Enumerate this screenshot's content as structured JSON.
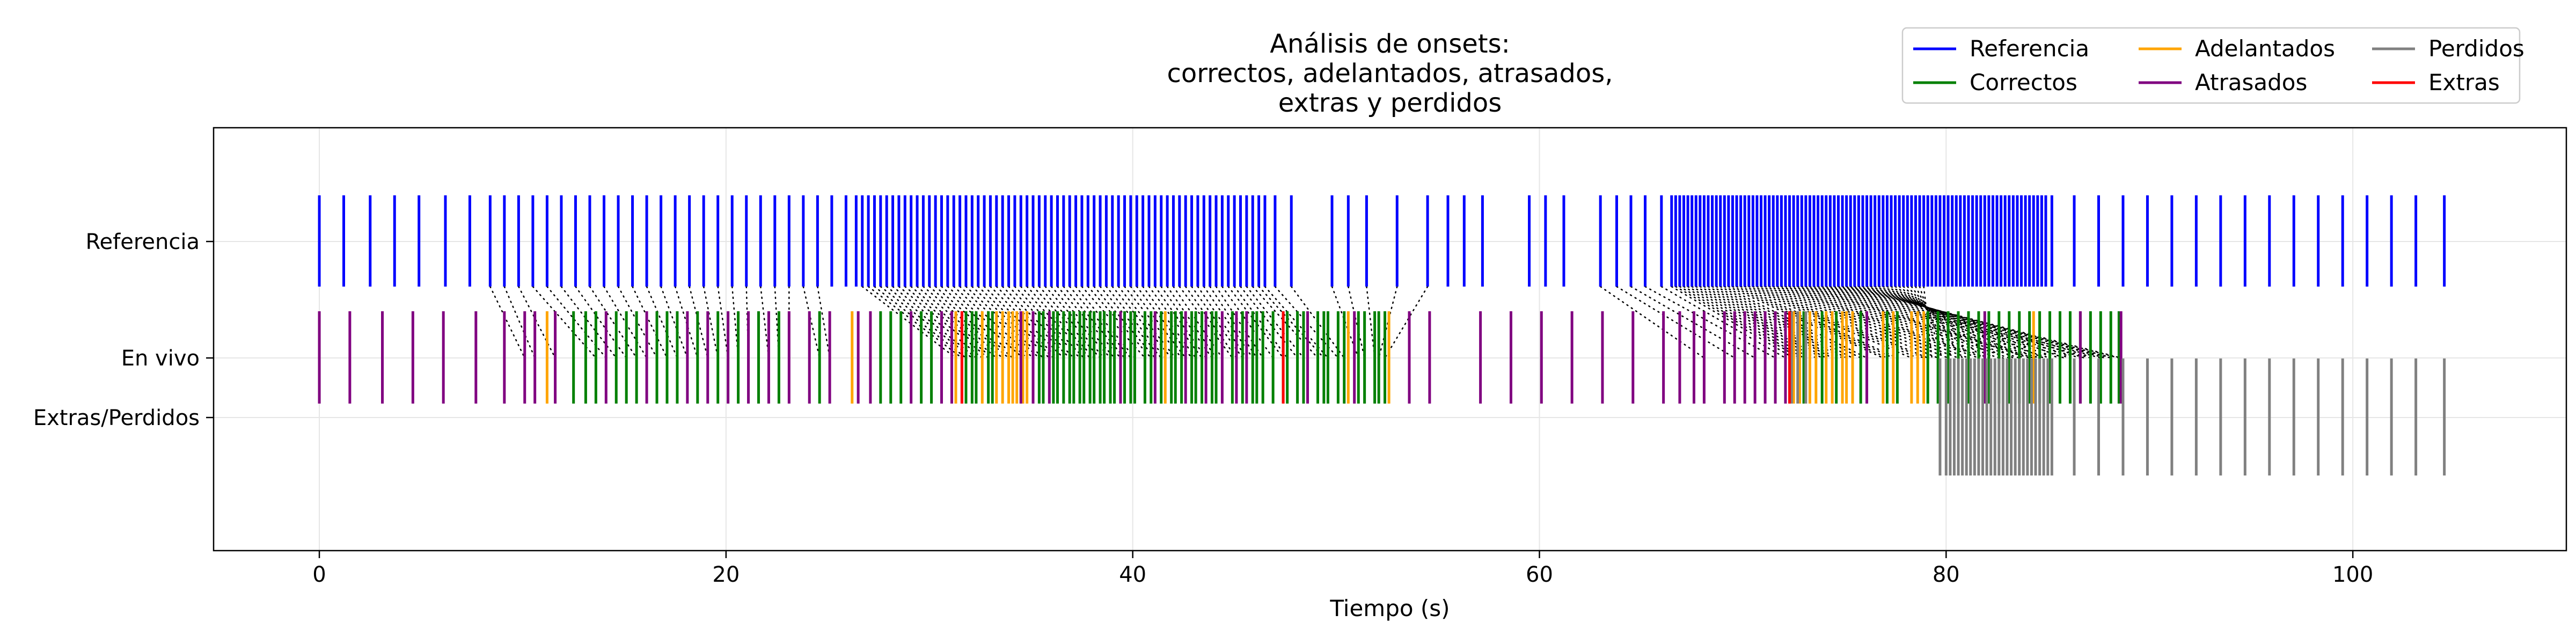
{
  "chart_data": {
    "type": "eventplot",
    "title": [
      "Análisis de onsets:",
      "correctos, adelantados, atrasados,",
      "extras y perdidos"
    ],
    "xlabel": "Tiempo (s)",
    "ylabel": "",
    "xlim": [
      -5.2,
      110.5
    ],
    "xticks": [
      0,
      20,
      40,
      60,
      80,
      100
    ],
    "rows": [
      "Referencia",
      "En vivo",
      "Extras/Perdidos"
    ],
    "grid": true,
    "legend_position": "top-right",
    "legend": [
      {
        "name": "Referencia",
        "color": "#0000ff"
      },
      {
        "name": "Correctos",
        "color": "#008000"
      },
      {
        "name": "Adelantados",
        "color": "#ffa500"
      },
      {
        "name": "Atrasados",
        "color": "#800080"
      },
      {
        "name": "Perdidos",
        "color": "#808080"
      },
      {
        "name": "Extras",
        "color": "#ff0000"
      }
    ],
    "colors": {
      "Referencia": "#0000ff",
      "Correctos": "#008000",
      "Adelantados": "#ffa500",
      "Atrasados": "#800080",
      "Perdidos": "#808080",
      "Extras": "#ff0000"
    },
    "series": [
      {
        "name": "Referencia",
        "row": "Referencia",
        "values": [
          0.0,
          1.2,
          2.5,
          3.7,
          4.9,
          6.2,
          7.4,
          8.4,
          9.1,
          9.8,
          10.5,
          11.2,
          11.9,
          12.6,
          13.3,
          14.0,
          14.7,
          15.4,
          16.1,
          16.8,
          17.5,
          18.2,
          18.9,
          19.6,
          20.3,
          21.0,
          21.7,
          22.4,
          23.1,
          23.8,
          24.5,
          25.2,
          25.9,
          26.4,
          26.7,
          27.0,
          27.3,
          27.6,
          27.9,
          28.2,
          28.5,
          28.8,
          29.1,
          29.4,
          29.7,
          30.0,
          30.3,
          30.6,
          30.9,
          31.2,
          31.5,
          31.8,
          32.1,
          32.4,
          32.7,
          33.0,
          33.3,
          33.6,
          33.9,
          34.2,
          34.5,
          34.8,
          35.1,
          35.4,
          35.7,
          36.0,
          36.3,
          36.6,
          36.9,
          37.2,
          37.5,
          37.8,
          38.1,
          38.4,
          38.7,
          39.0,
          39.3,
          39.6,
          39.9,
          40.2,
          40.5,
          40.8,
          41.1,
          41.4,
          41.7,
          42.0,
          42.3,
          42.6,
          42.9,
          43.2,
          43.5,
          43.8,
          44.1,
          44.4,
          44.7,
          45.0,
          45.3,
          45.6,
          45.9,
          46.2,
          46.5,
          47.0,
          47.8,
          49.8,
          50.6,
          51.5,
          53.0,
          54.5,
          55.5,
          56.3,
          57.2,
          59.5,
          60.3,
          61.2,
          63.0,
          63.8,
          64.5,
          65.2,
          66.0,
          66.5,
          66.7,
          66.9,
          67.1,
          67.3,
          67.5,
          67.7,
          67.9,
          68.1,
          68.3,
          68.5,
          68.7,
          68.9,
          69.1,
          69.3,
          69.5,
          69.7,
          69.9,
          70.1,
          70.3,
          70.5,
          70.7,
          70.9,
          71.1,
          71.3,
          71.5,
          71.7,
          71.9,
          72.1,
          72.3,
          72.5,
          72.7,
          72.9,
          73.1,
          73.3,
          73.5,
          73.7,
          73.9,
          74.1,
          74.3,
          74.5,
          74.7,
          74.9,
          75.1,
          75.3,
          75.5,
          75.7,
          75.9,
          76.1,
          76.3,
          76.5,
          76.7,
          76.9,
          77.1,
          77.3,
          77.5,
          77.7,
          77.9,
          78.1,
          78.3,
          78.5,
          78.7,
          78.9,
          79.1,
          79.3,
          79.5,
          79.7,
          79.9,
          80.1,
          80.3,
          80.5,
          80.7,
          80.9,
          81.1,
          81.3,
          81.5,
          81.7,
          81.9,
          82.1,
          82.3,
          82.5,
          82.7,
          82.9,
          83.1,
          83.3,
          83.5,
          83.7,
          83.9,
          84.1,
          84.3,
          84.5,
          84.7,
          84.9,
          85.2,
          86.3,
          87.5,
          88.7,
          89.9,
          91.1,
          92.3,
          93.5,
          94.7,
          95.9,
          97.1,
          98.3,
          99.5,
          100.7,
          101.9,
          103.1,
          104.5
        ]
      },
      {
        "name": "Correctos",
        "row": "En vivo",
        "values": [
          0.0,
          12.5,
          13.1,
          13.6,
          14.6,
          15.1,
          15.6,
          16.6,
          17.1,
          17.6,
          18.6,
          19.6,
          20.6,
          21.6,
          22.6,
          24.6,
          27.6,
          28.1,
          28.6,
          29.6,
          30.1,
          31.8,
          32.1,
          32.3,
          32.9,
          33.1,
          35.4,
          35.6,
          36.1,
          36.3,
          36.6,
          36.9,
          37.1,
          37.4,
          37.6,
          37.9,
          38.1,
          38.4,
          38.6,
          38.9,
          39.1,
          39.6,
          39.9,
          40.1,
          40.6,
          40.9,
          41.4,
          41.9,
          42.1,
          42.4,
          42.9,
          43.1,
          43.4,
          43.9,
          44.1,
          44.9,
          45.4,
          45.9,
          46.1,
          46.4,
          46.9,
          47.4,
          47.6,
          48.1,
          48.4,
          49.1,
          49.4,
          49.6,
          50.1,
          50.4,
          51.1,
          51.4,
          51.9,
          52.1,
          52.4,
          73.0,
          73.9,
          74.6,
          75.8,
          77.1,
          77.6,
          79.1,
          79.6,
          80.1,
          80.6,
          81.1,
          81.6,
          82.1,
          82.6,
          83.1,
          83.6,
          84.1,
          84.6,
          85.1,
          85.6,
          86.1,
          86.6,
          87.1,
          87.6,
          88.1,
          88.5
        ]
      },
      {
        "name": "Adelantados",
        "row": "En vivo",
        "values": [
          11.2,
          26.2,
          31.3,
          32.6,
          33.3,
          33.6,
          33.9,
          34.1,
          34.3,
          34.6,
          34.8,
          41.6,
          50.6,
          52.6,
          72.5,
          72.8,
          73.3,
          73.6,
          74.1,
          74.4,
          74.9,
          75.1,
          75.4,
          76.9,
          77.4,
          78.3,
          78.6,
          78.9,
          84.3
        ]
      },
      {
        "name": "Atrasados",
        "row": "En vivo",
        "values": [
          0.0,
          1.5,
          3.1,
          4.6,
          6.1,
          7.7,
          9.1,
          10.1,
          10.6,
          11.6,
          14.1,
          16.1,
          18.1,
          19.1,
          20.1,
          21.1,
          22.1,
          23.1,
          24.1,
          25.1,
          26.5,
          27.1,
          29.1,
          30.6,
          31.1,
          31.6,
          34.5,
          35.1,
          35.9,
          39.4,
          41.1,
          42.6,
          43.6,
          44.4,
          45.1,
          45.6,
          48.6,
          50.9,
          53.6,
          54.6,
          57.1,
          58.6,
          60.1,
          61.6,
          63.1,
          64.6,
          66.1,
          66.9,
          67.6,
          68.1,
          69.1,
          69.6,
          70.1,
          70.6,
          71.1,
          71.6,
          72.1,
          76.1,
          81.9,
          86.6,
          88.6
        ]
      },
      {
        "name": "Perdidos",
        "row": "En vivo",
        "values": [
          72.4,
          72.7,
          73.1
        ]
      },
      {
        "name": "Extras",
        "row": "En vivo",
        "values": [
          31.6,
          47.4,
          72.3
        ]
      },
      {
        "name": "Perdidos",
        "row": "Extras/Perdidos",
        "values": [
          79.7,
          80.0,
          80.2,
          80.4,
          80.6,
          80.8,
          81.0,
          81.2,
          81.4,
          81.6,
          81.8,
          82.0,
          82.2,
          82.4,
          82.6,
          82.8,
          83.0,
          83.2,
          83.4,
          83.6,
          83.8,
          84.0,
          84.2,
          84.4,
          84.6,
          84.8,
          85.0,
          85.2,
          86.3,
          87.5,
          88.7,
          89.9,
          91.1,
          92.3,
          93.5,
          94.7,
          95.9,
          97.1,
          98.3,
          99.5,
          100.7,
          101.9,
          103.1,
          104.5
        ]
      }
    ],
    "links": [
      [
        10.5,
        13.6
      ],
      [
        11.2,
        14.1
      ],
      [
        11.9,
        14.6
      ],
      [
        12.6,
        15.1
      ],
      [
        13.3,
        15.6
      ],
      [
        14.0,
        16.1
      ],
      [
        14.7,
        16.6
      ],
      [
        15.4,
        17.1
      ],
      [
        16.1,
        17.6
      ],
      [
        16.8,
        18.1
      ],
      [
        17.5,
        18.6
      ],
      [
        18.2,
        19.1
      ],
      [
        18.9,
        19.6
      ],
      [
        19.6,
        20.1
      ],
      [
        20.3,
        20.6
      ],
      [
        21.0,
        21.1
      ],
      [
        21.7,
        22.1
      ],
      [
        22.4,
        22.6
      ],
      [
        23.1,
        23.1
      ],
      [
        23.8,
        24.6
      ],
      [
        24.5,
        25.1
      ],
      [
        9.8,
        11.6
      ],
      [
        9.1,
        10.6
      ],
      [
        8.4,
        10.1
      ],
      [
        26.7,
        31.3
      ],
      [
        27.0,
        31.6
      ],
      [
        27.3,
        31.8
      ],
      [
        27.6,
        32.1
      ],
      [
        27.9,
        32.3
      ],
      [
        28.2,
        32.6
      ],
      [
        28.5,
        32.9
      ],
      [
        28.8,
        33.1
      ],
      [
        29.1,
        33.3
      ],
      [
        29.4,
        33.6
      ],
      [
        29.7,
        33.9
      ],
      [
        30.0,
        34.1
      ],
      [
        30.3,
        34.3
      ],
      [
        30.6,
        34.6
      ],
      [
        30.9,
        34.8
      ],
      [
        31.2,
        35.1
      ],
      [
        31.5,
        35.4
      ],
      [
        31.8,
        35.6
      ],
      [
        32.1,
        35.9
      ],
      [
        32.4,
        36.1
      ],
      [
        32.7,
        36.3
      ],
      [
        33.0,
        36.6
      ],
      [
        33.3,
        36.9
      ],
      [
        33.6,
        37.1
      ],
      [
        33.9,
        37.4
      ],
      [
        34.2,
        37.6
      ],
      [
        34.5,
        37.9
      ],
      [
        34.8,
        38.1
      ],
      [
        35.1,
        38.4
      ],
      [
        35.4,
        38.6
      ],
      [
        35.7,
        38.9
      ],
      [
        36.0,
        39.1
      ],
      [
        36.3,
        39.4
      ],
      [
        36.6,
        39.6
      ],
      [
        36.9,
        39.9
      ],
      [
        37.2,
        40.1
      ],
      [
        37.5,
        40.6
      ],
      [
        37.8,
        40.9
      ],
      [
        38.1,
        41.1
      ],
      [
        38.4,
        41.4
      ],
      [
        38.7,
        41.6
      ],
      [
        39.0,
        41.9
      ],
      [
        39.3,
        42.1
      ],
      [
        39.6,
        42.4
      ],
      [
        39.9,
        42.6
      ],
      [
        40.2,
        42.9
      ],
      [
        40.5,
        43.1
      ],
      [
        40.8,
        43.4
      ],
      [
        41.1,
        43.6
      ],
      [
        41.4,
        43.9
      ],
      [
        41.7,
        44.1
      ],
      [
        42.0,
        44.4
      ],
      [
        42.3,
        44.9
      ],
      [
        42.6,
        45.1
      ],
      [
        42.9,
        45.4
      ],
      [
        43.2,
        45.6
      ],
      [
        43.5,
        45.9
      ],
      [
        43.8,
        46.1
      ],
      [
        44.1,
        46.4
      ],
      [
        44.4,
        46.9
      ],
      [
        44.7,
        47.4
      ],
      [
        45.0,
        47.6
      ],
      [
        45.3,
        48.1
      ],
      [
        45.6,
        48.4
      ],
      [
        45.9,
        49.1
      ],
      [
        46.2,
        49.4
      ],
      [
        46.5,
        49.6
      ],
      [
        47.0,
        50.1
      ],
      [
        47.8,
        50.4
      ],
      [
        49.8,
        51.1
      ],
      [
        50.6,
        51.4
      ],
      [
        51.5,
        51.9
      ],
      [
        53.0,
        52.1
      ],
      [
        54.5,
        52.4
      ],
      [
        63.0,
        68.1
      ],
      [
        63.8,
        69.6
      ],
      [
        64.5,
        70.6
      ],
      [
        65.2,
        71.6
      ],
      [
        66.0,
        72.1
      ],
      [
        66.5,
        72.5
      ],
      [
        66.7,
        72.8
      ],
      [
        66.9,
        73.0
      ],
      [
        67.1,
        73.3
      ],
      [
        67.3,
        73.6
      ],
      [
        67.5,
        73.9
      ],
      [
        67.7,
        74.1
      ],
      [
        67.9,
        74.4
      ],
      [
        68.1,
        74.6
      ],
      [
        68.3,
        74.9
      ],
      [
        68.5,
        75.1
      ],
      [
        68.7,
        75.4
      ],
      [
        68.9,
        75.8
      ],
      [
        69.1,
        76.1
      ],
      [
        69.3,
        76.9
      ],
      [
        69.5,
        77.1
      ],
      [
        69.7,
        77.4
      ],
      [
        69.9,
        77.6
      ],
      [
        70.1,
        78.3
      ],
      [
        70.3,
        78.6
      ],
      [
        70.5,
        78.9
      ],
      [
        70.7,
        79.1
      ],
      [
        70.9,
        79.6
      ],
      [
        71.1,
        80.1
      ],
      [
        71.3,
        80.6
      ],
      [
        71.5,
        81.1
      ],
      [
        71.7,
        81.6
      ],
      [
        71.9,
        81.9
      ],
      [
        72.1,
        82.1
      ],
      [
        72.3,
        82.6
      ],
      [
        72.5,
        83.1
      ],
      [
        72.7,
        83.6
      ],
      [
        72.9,
        84.1
      ],
      [
        73.1,
        84.3
      ],
      [
        73.3,
        84.6
      ],
      [
        73.5,
        85.1
      ],
      [
        73.7,
        85.6
      ],
      [
        73.9,
        86.1
      ],
      [
        74.1,
        86.6
      ],
      [
        74.3,
        87.1
      ],
      [
        74.5,
        87.6
      ],
      [
        74.7,
        88.1
      ],
      [
        74.9,
        88.5
      ],
      [
        75.1,
        88.6
      ],
      [
        75.3,
        88.2
      ],
      [
        75.5,
        87.8
      ],
      [
        75.7,
        87.3
      ],
      [
        75.9,
        86.8
      ],
      [
        76.1,
        86.3
      ],
      [
        76.3,
        85.8
      ],
      [
        76.5,
        85.3
      ],
      [
        76.7,
        84.8
      ],
      [
        76.9,
        84.4
      ],
      [
        77.1,
        83.8
      ],
      [
        77.3,
        83.3
      ],
      [
        77.5,
        82.8
      ],
      [
        77.7,
        82.3
      ],
      [
        77.9,
        81.8
      ],
      [
        78.1,
        81.3
      ],
      [
        78.3,
        80.8
      ],
      [
        78.5,
        80.3
      ],
      [
        78.7,
        79.8
      ],
      [
        78.9,
        79.3
      ]
    ]
  }
}
